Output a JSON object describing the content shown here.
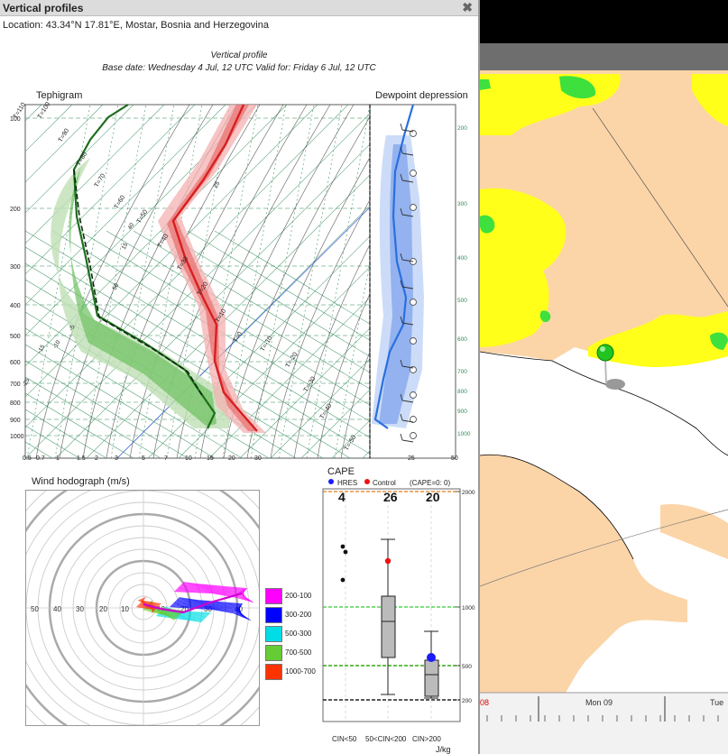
{
  "window": {
    "title": "Vertical profiles",
    "close_label": "✖"
  },
  "location": "Location: 43.34°N 17.81°E, Mostar, Bosnia and Herzegovina",
  "profile": {
    "heading": "Vertical profile",
    "dates": "Base date: Wednesday 4 Jul, 12 UTC Valid for: Friday 6 Jul, 12 UTC"
  },
  "tephigram": {
    "label": "Tephigram",
    "dewpoint_label": "Dewpoint depression",
    "pressure_ticks": [
      "100",
      "200",
      "300",
      "400",
      "500",
      "600",
      "700",
      "800",
      "900",
      "1000"
    ],
    "mixing_ratio_ticks": [
      "0.5",
      "0.7",
      "1",
      "1.5",
      "2",
      "3",
      "5",
      "7",
      "10",
      "15",
      "20",
      "30"
    ],
    "theta_labels": [
      "T=110",
      "T=100",
      "T=90",
      "T=80",
      "T=70",
      "T=60",
      "T=50",
      "T=40",
      "T=30",
      "T=20",
      "T=10",
      "T=0",
      "T=-10",
      "T=-20",
      "T=-30",
      "T=-40",
      "T=-50"
    ],
    "temp_labels": [
      "-25",
      "-15",
      "-10",
      "-5",
      "15",
      "25",
      "40",
      "50"
    ],
    "dpd_ticks": [
      "25",
      "50"
    ],
    "height_ticks": [
      "200",
      "300",
      "400",
      "500",
      "600",
      "700",
      "800",
      "900",
      "1000"
    ],
    "colors": {
      "temperature": "#d62020",
      "dewpoint": "#1e6e1e",
      "dpd": "#2a6fe0",
      "grid": "#2e8b57"
    }
  },
  "hodograph": {
    "label": "Wind hodograph (m/s)",
    "ring_labels": [
      "50",
      "40",
      "30",
      "20",
      "10",
      "10",
      "20",
      "30",
      "40"
    ],
    "legend": [
      {
        "label": "200-100",
        "color": "#ff00ff"
      },
      {
        "label": "300-200",
        "color": "#0000ff"
      },
      {
        "label": "500-300",
        "color": "#00dde6"
      },
      {
        "label": "700-500",
        "color": "#66cc33"
      },
      {
        "label": "1000-700",
        "color": "#ff3300"
      }
    ]
  },
  "cape": {
    "label": "CAPE",
    "legend_hres": "HRES",
    "legend_control": "Control",
    "legend_note": "(CAPE=0: 0)",
    "counts": [
      "4",
      "26",
      "20"
    ],
    "y_ticks": [
      "2000",
      "1000",
      "500",
      "200"
    ],
    "categories": [
      "CIN<50",
      "50<CIN<200",
      "CIN>200"
    ],
    "unit": "J/kg",
    "colors": {
      "hres": "#1a1aff",
      "control": "#ee1111"
    }
  },
  "map": {
    "timeline_left": "08",
    "timeline_mid": "Mon 09",
    "timeline_right": "Tue",
    "colors": {
      "land": "#fbd5a8",
      "sea": "#ffffff",
      "yellow": "#ffff1a",
      "green": "#3ee03e"
    }
  }
}
